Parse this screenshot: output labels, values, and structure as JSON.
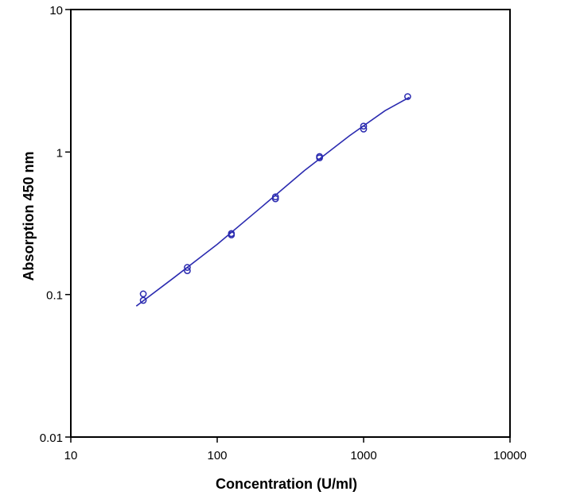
{
  "chart_data": {
    "type": "scatter",
    "title": "",
    "xlabel": "Concentration (U/ml)",
    "ylabel": "Absorption 450 nm",
    "xscale": "log",
    "yscale": "log",
    "xlim": [
      10,
      10000
    ],
    "ylim": [
      0.01,
      10
    ],
    "xticks": [
      10,
      100,
      1000,
      10000
    ],
    "xtick_labels": [
      "10",
      "100",
      "1000",
      "10000"
    ],
    "yticks": [
      0.01,
      0.1,
      1,
      10
    ],
    "ytick_labels": [
      "0.01",
      "0.1",
      "1",
      "10"
    ],
    "grid": false,
    "legend": "none",
    "series_color": "#2b2bb0",
    "series": [
      {
        "marker": "circle",
        "points": [
          {
            "x": 31.25,
            "y": 0.101
          },
          {
            "x": 31.25,
            "y": 0.091
          },
          {
            "x": 62.5,
            "y": 0.155
          },
          {
            "x": 62.5,
            "y": 0.147
          },
          {
            "x": 125,
            "y": 0.268
          },
          {
            "x": 125,
            "y": 0.262
          },
          {
            "x": 250,
            "y": 0.485
          },
          {
            "x": 250,
            "y": 0.47
          },
          {
            "x": 500,
            "y": 0.93
          },
          {
            "x": 500,
            "y": 0.91
          },
          {
            "x": 1000,
            "y": 1.52
          },
          {
            "x": 1000,
            "y": 1.45
          },
          {
            "x": 2000,
            "y": 2.45
          }
        ]
      },
      {
        "marker": "none",
        "line": "fit",
        "points": [
          {
            "x": 28,
            "y": 0.083
          },
          {
            "x": 50,
            "y": 0.13
          },
          {
            "x": 100,
            "y": 0.225
          },
          {
            "x": 200,
            "y": 0.41
          },
          {
            "x": 400,
            "y": 0.75
          },
          {
            "x": 800,
            "y": 1.3
          },
          {
            "x": 1400,
            "y": 1.95
          },
          {
            "x": 2050,
            "y": 2.42
          }
        ]
      }
    ]
  }
}
